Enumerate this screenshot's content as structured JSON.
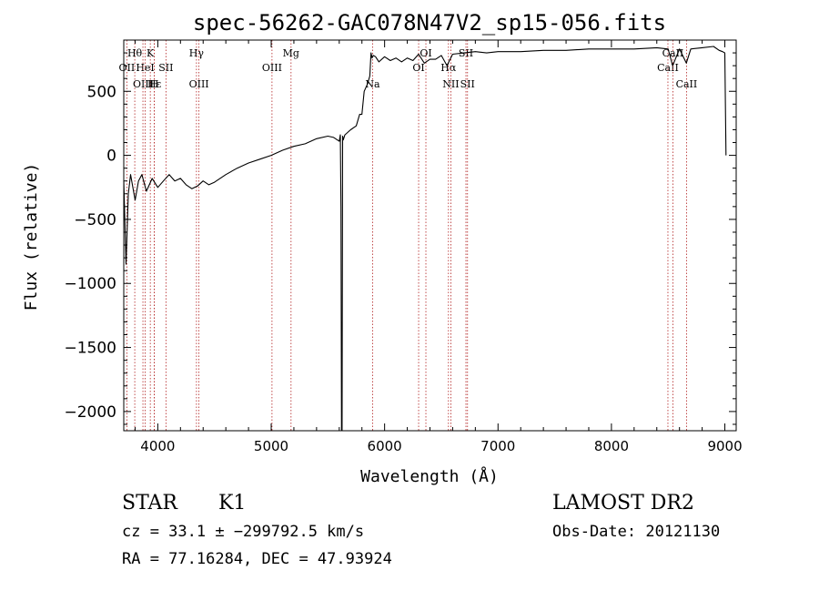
{
  "chart_data": {
    "type": "line",
    "title": "spec-56262-GAC078N47V2_sp15-056.fits",
    "xlabel": "Wavelength (Å)",
    "ylabel": "Flux (relative)",
    "xlim": [
      3700,
      9100
    ],
    "ylim": [
      -2150,
      900
    ],
    "xticks": [
      4000,
      5000,
      6000,
      7000,
      8000,
      9000
    ],
    "yticks": [
      -2000,
      -1500,
      -1000,
      -500,
      0,
      500
    ],
    "grid": false,
    "series": [
      {
        "x": [
          3700,
          3720,
          3740,
          3760,
          3780,
          3800,
          3830,
          3860,
          3900,
          3950,
          4000,
          4050,
          4100,
          4150,
          4200,
          4250,
          4300,
          4350,
          4400,
          4450,
          4500,
          4600,
          4700,
          4800,
          4900,
          5000,
          5100,
          5200,
          5300,
          5400,
          5500,
          5550,
          5600,
          5610,
          5615,
          5620,
          5625,
          5630,
          5635,
          5650,
          5700,
          5750,
          5780,
          5800,
          5820,
          5850,
          5870,
          5880,
          5890,
          5900,
          5920,
          5950,
          6000,
          6050,
          6100,
          6150,
          6200,
          6250,
          6300,
          6350,
          6400,
          6450,
          6500,
          6550,
          6600,
          6700,
          6800,
          6900,
          7000,
          7200,
          7400,
          7600,
          7800,
          8000,
          8200,
          8400,
          8500,
          8540,
          8600,
          8660,
          8700,
          8800,
          8900,
          8950,
          8980,
          9000,
          9010
        ],
        "y": [
          -200,
          -850,
          -300,
          -150,
          -250,
          -350,
          -200,
          -150,
          -280,
          -180,
          -250,
          -200,
          -150,
          -200,
          -180,
          -230,
          -260,
          -240,
          -200,
          -230,
          -210,
          -150,
          -100,
          -60,
          -30,
          0,
          40,
          70,
          90,
          130,
          150,
          140,
          110,
          160,
          -400,
          -2150,
          -2150,
          150,
          120,
          160,
          200,
          230,
          320,
          320,
          500,
          560,
          620,
          800,
          760,
          780,
          770,
          730,
          770,
          740,
          760,
          730,
          760,
          740,
          790,
          720,
          750,
          750,
          780,
          700,
          790,
          800,
          810,
          800,
          810,
          810,
          820,
          820,
          830,
          830,
          830,
          840,
          830,
          700,
          830,
          720,
          830,
          840,
          850,
          820,
          810,
          800,
          0
        ]
      }
    ],
    "lines": [
      {
        "label": "Hθ",
        "x": 3797,
        "row": 1
      },
      {
        "label": "OII",
        "x": 3727,
        "row": 2
      },
      {
        "label": "HeI",
        "x": 3889,
        "row": 2
      },
      {
        "label": "K",
        "x": 3934,
        "row": 1
      },
      {
        "label": "H",
        "x": 3969,
        "row": 3
      },
      {
        "label": "SII",
        "x": 4072,
        "row": 2
      },
      {
        "label": "OIII",
        "x": 3869,
        "row": 3
      },
      {
        "label": "Hε",
        "x": 3970,
        "row": 3
      },
      {
        "label": "Hγ",
        "x": 4341,
        "row": 1
      },
      {
        "label": "OIII",
        "x": 4363,
        "row": 3
      },
      {
        "label": "OIII",
        "x": 5007,
        "row": 2
      },
      {
        "label": "Mg",
        "x": 5175,
        "row": 1
      },
      {
        "label": "Na",
        "x": 5894,
        "row": 3
      },
      {
        "label": "OI",
        "x": 6300,
        "row": 2
      },
      {
        "label": "OI",
        "x": 6364,
        "row": 1
      },
      {
        "label": "Hα",
        "x": 6563,
        "row": 2
      },
      {
        "label": "NII",
        "x": 6584,
        "row": 3
      },
      {
        "label": "SII",
        "x": 6717,
        "row": 1
      },
      {
        "label": "SII",
        "x": 6731,
        "row": 3
      },
      {
        "label": "CaII",
        "x": 8498,
        "row": 2
      },
      {
        "label": "CaII",
        "x": 8542,
        "row": 1
      },
      {
        "label": "CaII",
        "x": 8662,
        "row": 3
      }
    ]
  },
  "info": {
    "class_label": "STAR",
    "subclass": "K1",
    "survey": "LAMOST DR2",
    "cz": "cz = 33.1 ± −299792.5 km/s",
    "obs_date": "Obs-Date: 20121130",
    "radec": "RA =  77.16284, DEC =  47.93924"
  }
}
